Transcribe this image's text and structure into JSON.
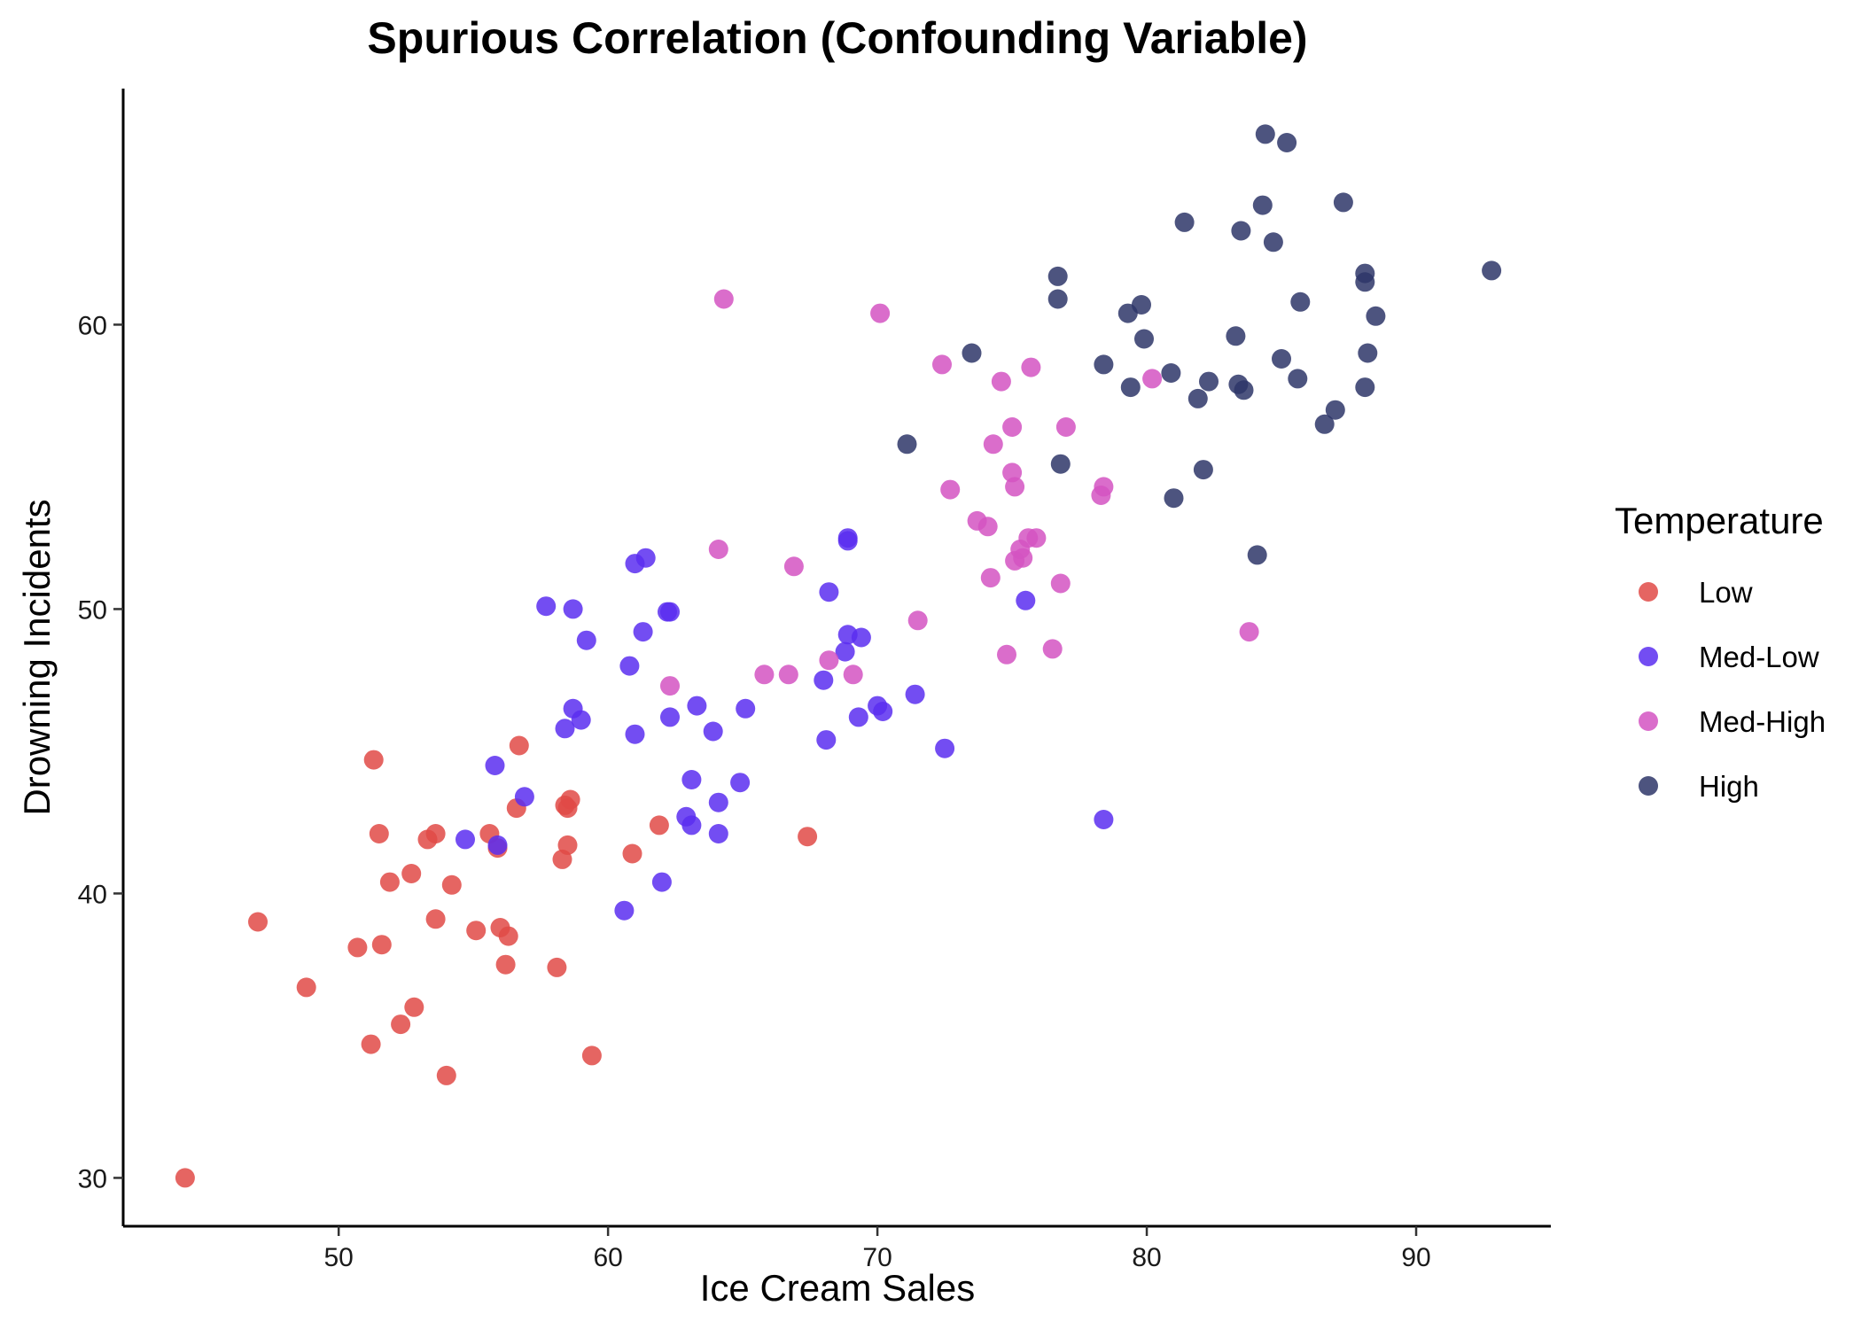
{
  "chart_data": {
    "type": "scatter",
    "title": "Spurious Correlation (Confounding Variable)",
    "xlabel": "Ice Cream Sales",
    "ylabel": "Drowning Incidents",
    "xlim": [
      42,
      95
    ],
    "ylim": [
      28.3,
      68.3
    ],
    "x_ticks": [
      50,
      60,
      70,
      80,
      90
    ],
    "y_ticks": [
      30,
      40,
      50,
      60
    ],
    "grid": false,
    "legend": {
      "title": "Temperature",
      "position": "right"
    },
    "series": [
      {
        "name": "Low",
        "color": "#E04A46",
        "points": [
          [
            44.3,
            30.0
          ],
          [
            47.0,
            39.0
          ],
          [
            48.8,
            36.7
          ],
          [
            50.7,
            38.1
          ],
          [
            51.2,
            34.7
          ],
          [
            51.3,
            44.7
          ],
          [
            51.5,
            42.1
          ],
          [
            51.6,
            38.2
          ],
          [
            51.9,
            40.4
          ],
          [
            52.3,
            35.4
          ],
          [
            52.7,
            40.7
          ],
          [
            52.8,
            36.0
          ],
          [
            53.3,
            41.9
          ],
          [
            53.6,
            42.1
          ],
          [
            53.6,
            39.1
          ],
          [
            54.0,
            33.6
          ],
          [
            54.2,
            40.3
          ],
          [
            55.1,
            38.7
          ],
          [
            55.6,
            42.1
          ],
          [
            55.9,
            41.6
          ],
          [
            56.0,
            38.8
          ],
          [
            56.2,
            37.5
          ],
          [
            56.3,
            38.5
          ],
          [
            56.6,
            43.0
          ],
          [
            56.7,
            45.2
          ],
          [
            58.1,
            37.4
          ],
          [
            58.3,
            41.2
          ],
          [
            58.4,
            43.1
          ],
          [
            58.5,
            43.0
          ],
          [
            58.5,
            41.7
          ],
          [
            58.6,
            43.3
          ],
          [
            59.4,
            34.3
          ],
          [
            60.9,
            41.4
          ],
          [
            61.9,
            42.4
          ],
          [
            67.4,
            42.0
          ]
        ]
      },
      {
        "name": "Med-Low",
        "color": "#5B2EF0",
        "points": [
          [
            54.7,
            41.9
          ],
          [
            55.8,
            44.5
          ],
          [
            55.9,
            41.7
          ],
          [
            56.9,
            43.4
          ],
          [
            57.7,
            50.1
          ],
          [
            58.4,
            45.8
          ],
          [
            58.7,
            46.5
          ],
          [
            58.7,
            50.0
          ],
          [
            59.0,
            46.1
          ],
          [
            59.2,
            48.9
          ],
          [
            60.6,
            39.4
          ],
          [
            60.8,
            48.0
          ],
          [
            61.0,
            51.6
          ],
          [
            61.0,
            45.6
          ],
          [
            61.3,
            49.2
          ],
          [
            61.4,
            51.8
          ],
          [
            62.0,
            40.4
          ],
          [
            62.2,
            49.9
          ],
          [
            62.3,
            49.9
          ],
          [
            62.3,
            46.2
          ],
          [
            62.9,
            42.7
          ],
          [
            63.1,
            44.0
          ],
          [
            63.1,
            42.4
          ],
          [
            63.3,
            46.6
          ],
          [
            63.9,
            45.7
          ],
          [
            64.1,
            43.2
          ],
          [
            64.1,
            42.1
          ],
          [
            64.9,
            43.9
          ],
          [
            65.1,
            46.5
          ],
          [
            68.0,
            47.5
          ],
          [
            68.1,
            45.4
          ],
          [
            68.2,
            50.6
          ],
          [
            68.8,
            48.5
          ],
          [
            68.9,
            52.5
          ],
          [
            68.9,
            49.1
          ],
          [
            68.9,
            52.4
          ],
          [
            69.3,
            46.2
          ],
          [
            69.4,
            49.0
          ],
          [
            70.0,
            46.6
          ],
          [
            70.2,
            46.4
          ],
          [
            71.4,
            47.0
          ],
          [
            72.5,
            45.1
          ],
          [
            75.5,
            50.3
          ],
          [
            78.4,
            42.6
          ]
        ]
      },
      {
        "name": "Med-High",
        "color": "#D454C2",
        "points": [
          [
            62.3,
            47.3
          ],
          [
            64.1,
            52.1
          ],
          [
            64.3,
            60.9
          ],
          [
            65.8,
            47.7
          ],
          [
            66.7,
            47.7
          ],
          [
            66.9,
            51.5
          ],
          [
            68.2,
            48.2
          ],
          [
            69.1,
            47.7
          ],
          [
            70.1,
            60.4
          ],
          [
            71.5,
            49.6
          ],
          [
            72.4,
            58.6
          ],
          [
            72.7,
            54.2
          ],
          [
            73.7,
            53.1
          ],
          [
            74.1,
            52.9
          ],
          [
            74.2,
            51.1
          ],
          [
            74.3,
            55.8
          ],
          [
            74.6,
            58.0
          ],
          [
            74.8,
            48.4
          ],
          [
            75.0,
            54.8
          ],
          [
            75.0,
            56.4
          ],
          [
            75.1,
            54.3
          ],
          [
            75.1,
            51.7
          ],
          [
            75.3,
            52.1
          ],
          [
            75.4,
            51.8
          ],
          [
            75.6,
            52.5
          ],
          [
            75.7,
            58.5
          ],
          [
            75.9,
            52.5
          ],
          [
            76.5,
            48.6
          ],
          [
            76.8,
            50.9
          ],
          [
            77.0,
            56.4
          ],
          [
            78.3,
            54.0
          ],
          [
            78.4,
            54.3
          ],
          [
            80.2,
            58.1
          ],
          [
            83.8,
            49.2
          ]
        ]
      },
      {
        "name": "High",
        "color": "#2E3669",
        "points": [
          [
            71.1,
            55.8
          ],
          [
            73.5,
            59.0
          ],
          [
            76.7,
            61.7
          ],
          [
            76.7,
            60.9
          ],
          [
            76.8,
            55.1
          ],
          [
            78.4,
            58.6
          ],
          [
            79.3,
            60.4
          ],
          [
            79.4,
            57.8
          ],
          [
            79.8,
            60.7
          ],
          [
            79.9,
            59.5
          ],
          [
            80.9,
            58.3
          ],
          [
            81.0,
            53.9
          ],
          [
            81.4,
            63.6
          ],
          [
            81.9,
            57.4
          ],
          [
            82.1,
            54.9
          ],
          [
            82.3,
            58.0
          ],
          [
            83.3,
            59.6
          ],
          [
            83.4,
            57.9
          ],
          [
            83.5,
            63.3
          ],
          [
            83.6,
            57.7
          ],
          [
            84.1,
            51.9
          ],
          [
            84.3,
            64.2
          ],
          [
            84.4,
            66.7
          ],
          [
            84.7,
            62.9
          ],
          [
            85.0,
            58.8
          ],
          [
            85.2,
            66.4
          ],
          [
            85.6,
            58.1
          ],
          [
            85.7,
            60.8
          ],
          [
            86.6,
            56.5
          ],
          [
            87.0,
            57.0
          ],
          [
            87.3,
            64.3
          ],
          [
            88.1,
            61.8
          ],
          [
            88.1,
            61.5
          ],
          [
            88.1,
            57.8
          ],
          [
            88.2,
            59.0
          ],
          [
            88.5,
            60.3
          ],
          [
            92.8,
            61.9
          ]
        ]
      }
    ]
  }
}
